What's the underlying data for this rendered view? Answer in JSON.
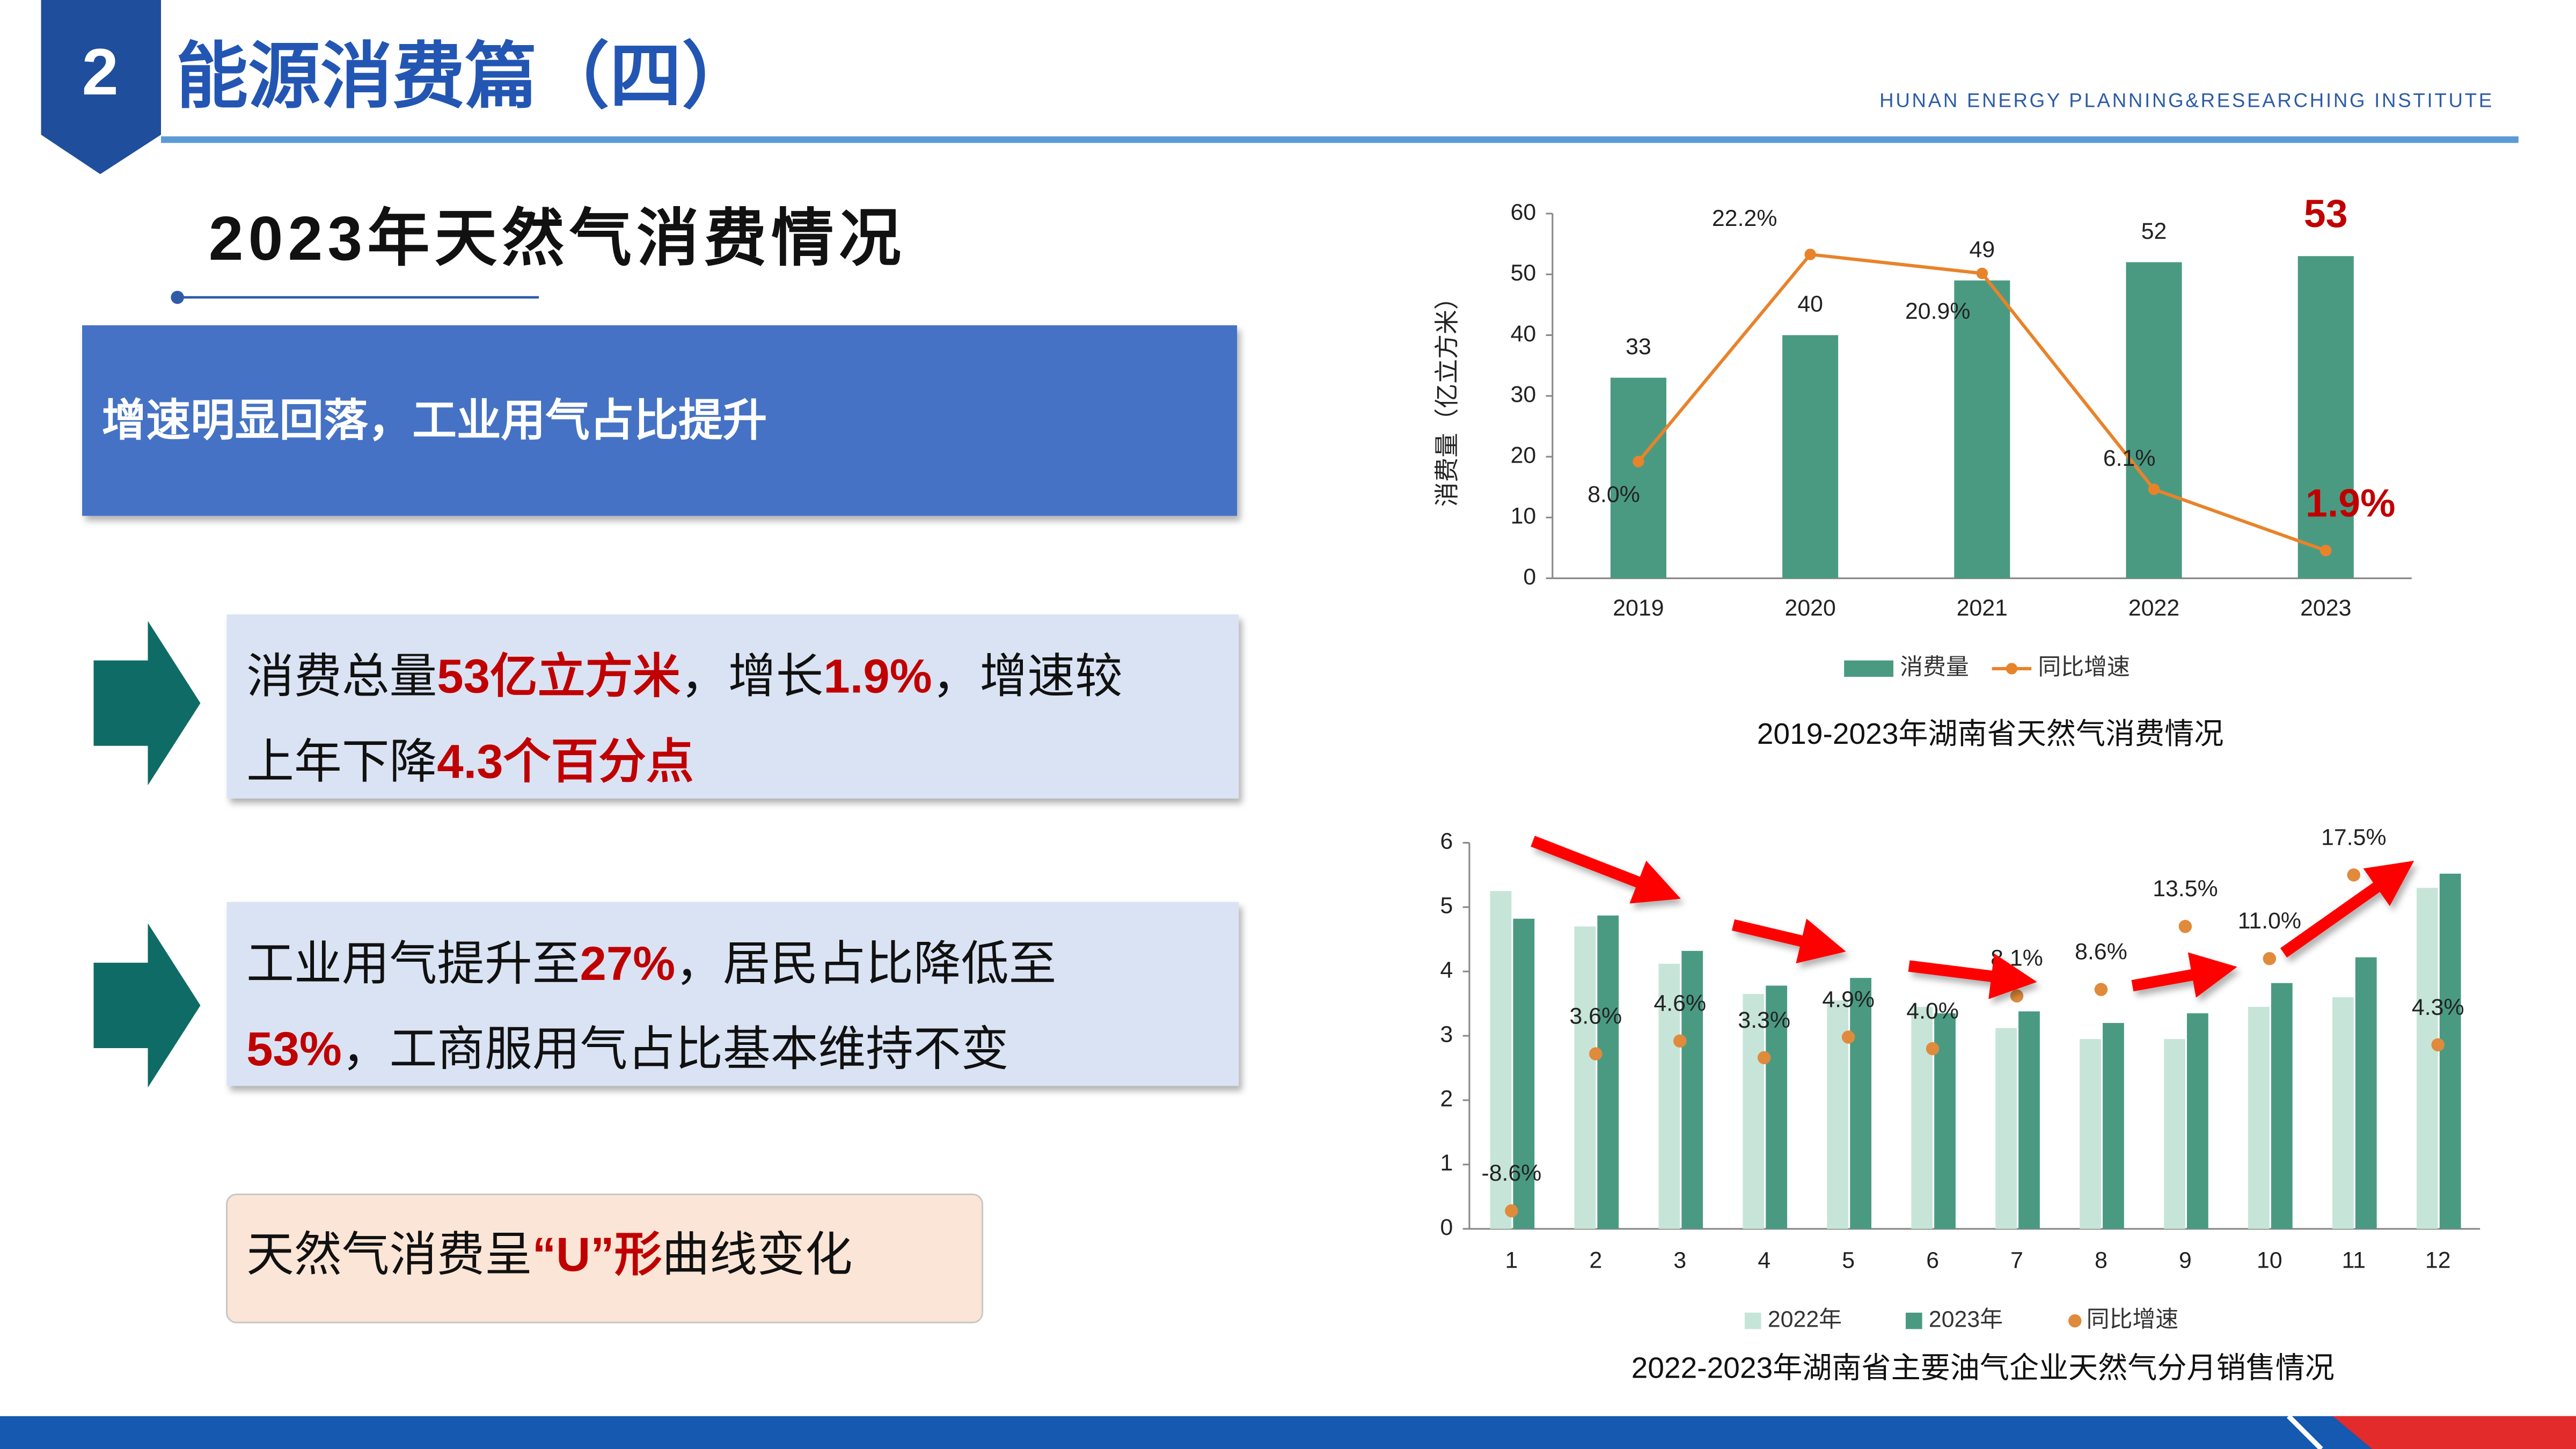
{
  "header": {
    "number": "2",
    "title": "能源消费篇（四）",
    "subtitle_en": "HUNAN ENERGY PLANNING&RESEARCHING INSTITUTE"
  },
  "section_title": "2023年天然气消费情况",
  "banner": "增速明显回落，工业用气占比提升",
  "points": [
    {
      "lines": [
        [
          {
            "text": "消费总量"
          },
          {
            "text": "53亿立方米",
            "color": "#c00000"
          },
          {
            "text": "，增长"
          },
          {
            "text": "1.9%",
            "color": "#c00000"
          },
          {
            "text": "，增速较"
          }
        ],
        [
          {
            "text": "上年下降"
          },
          {
            "text": "4.3个百分点",
            "color": "#c00000"
          }
        ]
      ]
    },
    {
      "lines": [
        [
          {
            "text": "工业用气提升至"
          },
          {
            "text": "27%",
            "color": "#c00000"
          },
          {
            "text": "，居民占比降低至"
          }
        ],
        [
          {
            "text": "53%",
            "color": "#c00000"
          },
          {
            "text": "，工商服用气占比基本维持不变"
          }
        ]
      ]
    },
    {
      "lines": [
        [
          {
            "text": "天然气消费呈"
          },
          {
            "text": "“U”形",
            "color": "#c00000"
          },
          {
            "text": "曲线变化"
          }
        ]
      ]
    }
  ],
  "chart_data": [
    {
      "type": "bar",
      "title": "2019-2023年湖南省天然气消费情况",
      "y_label": "消费量（亿立方米）",
      "categories": [
        "2019",
        "2020",
        "2021",
        "2022",
        "2023"
      ],
      "series": [
        {
          "name": "消费量",
          "type": "bar",
          "color": "#4a9a82",
          "values": [
            33,
            40,
            49,
            52,
            53
          ]
        },
        {
          "name": "同比增速",
          "type": "line",
          "axis": "y2",
          "color": "#e8832a",
          "values": [
            8.0,
            22.2,
            20.9,
            6.1,
            1.9
          ],
          "value_labels": [
            "8.0%",
            "22.2%",
            "20.9%",
            "6.1%",
            "1.9%"
          ]
        }
      ],
      "highlight_color": "#c00000",
      "ylim": [
        0,
        60
      ],
      "yticks": [
        0,
        10,
        20,
        30,
        40,
        50,
        60
      ],
      "y2lim": [
        0,
        25
      ],
      "legend": "bottom"
    },
    {
      "type": "bar",
      "title": "2022-2023年湖南省主要油气企业天然气分月销售情况",
      "categories": [
        "1",
        "2",
        "3",
        "4",
        "5",
        "6",
        "7",
        "8",
        "9",
        "10",
        "11",
        "12"
      ],
      "series": [
        {
          "name": "2022年",
          "type": "bar",
          "color": "#c6e5d8",
          "values": [
            5.25,
            4.7,
            4.12,
            3.65,
            3.55,
            3.45,
            3.12,
            2.95,
            2.95,
            3.45,
            3.6,
            5.3
          ]
        },
        {
          "name": "2023年",
          "type": "bar",
          "color": "#4a9a82",
          "values": [
            4.82,
            4.87,
            4.32,
            3.78,
            3.9,
            3.35,
            3.38,
            3.2,
            3.35,
            3.82,
            4.22,
            5.52
          ]
        },
        {
          "name": "同比增速",
          "type": "scatter",
          "axis": "y2",
          "color": "#e08a3c",
          "values": [
            -8.6,
            3.6,
            4.6,
            3.3,
            4.9,
            4.0,
            8.1,
            8.6,
            13.5,
            11.0,
            17.5,
            4.3
          ],
          "value_labels": [
            "-8.6%",
            "3.6%",
            "4.6%",
            "3.3%",
            "4.9%",
            "4.0%",
            "8.1%",
            "8.6%",
            "13.5%",
            "11.0%",
            "17.5%",
            "4.3%"
          ]
        }
      ],
      "ylim": [
        0,
        6
      ],
      "yticks": [
        0,
        1,
        2,
        3,
        4,
        5,
        6
      ],
      "y2lim": [
        -10,
        20
      ],
      "legend": "bottom"
    }
  ]
}
